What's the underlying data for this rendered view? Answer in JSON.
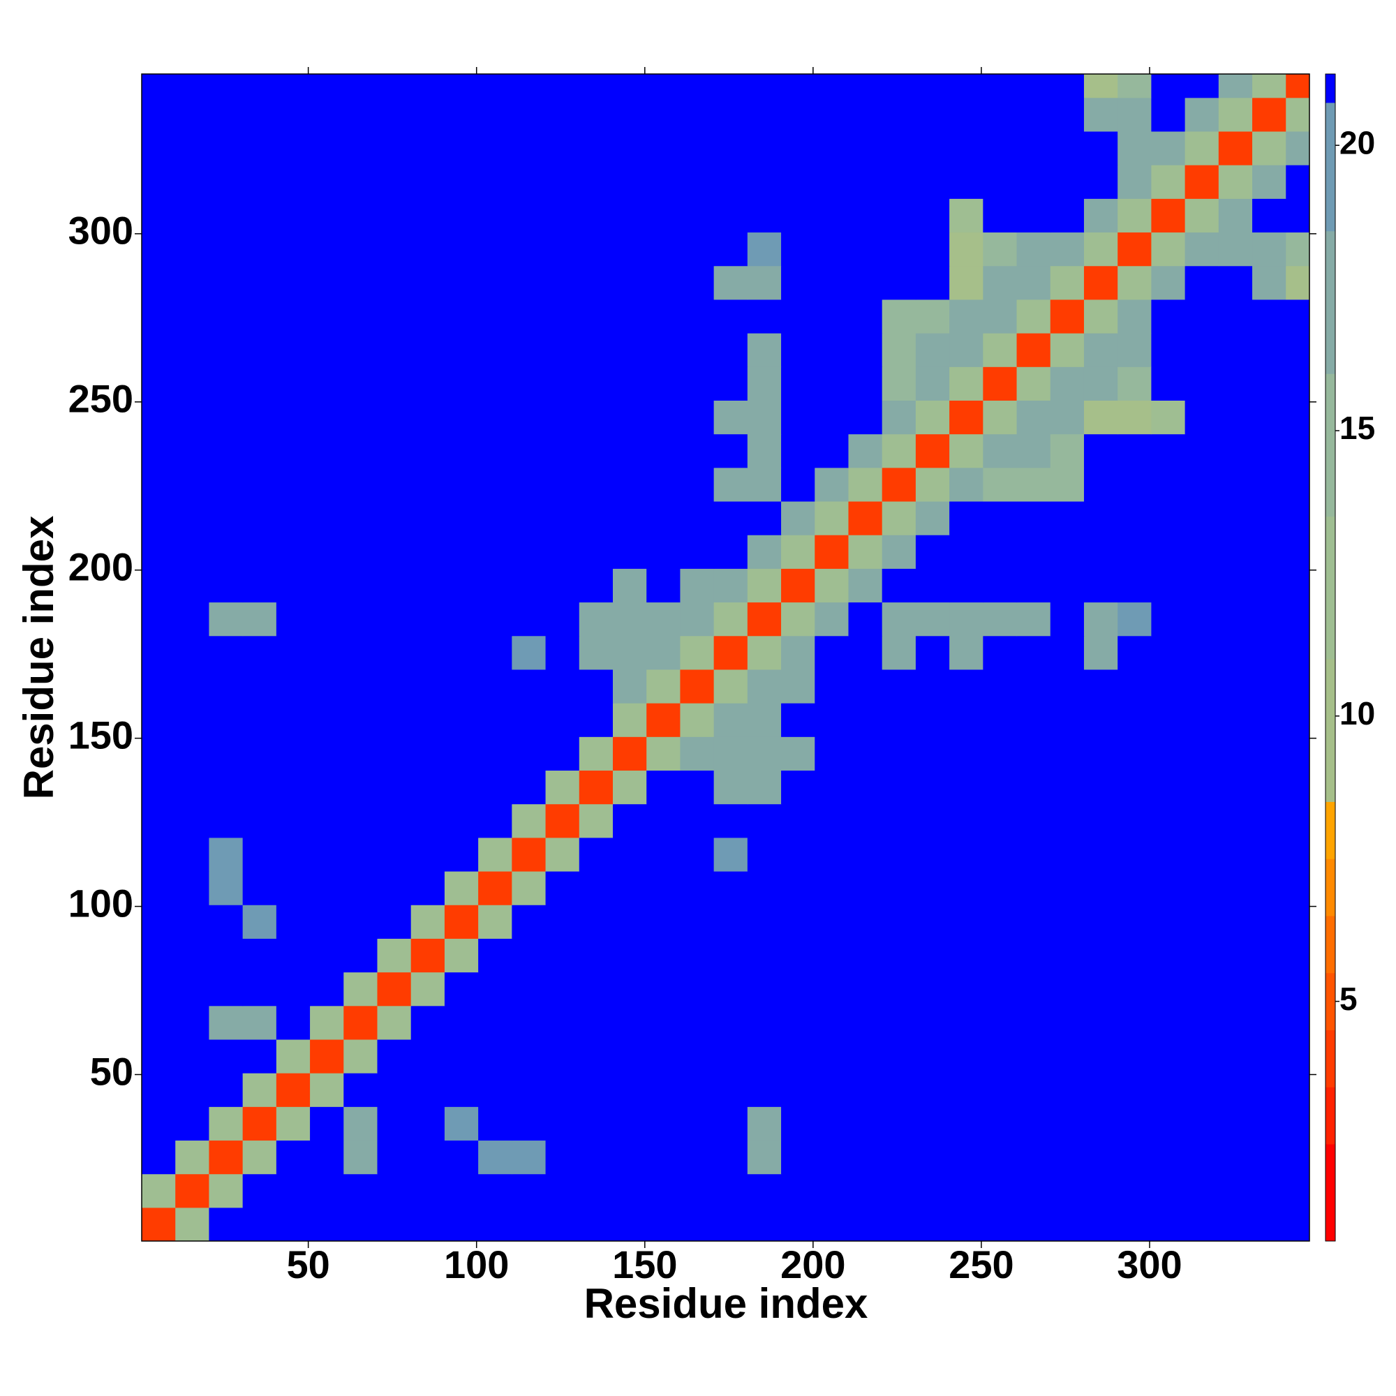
{
  "chart_data": {
    "type": "heatmap",
    "xlabel": "Residue index",
    "ylabel": "Residue index",
    "x": [
      5.5,
      15.5,
      25.5,
      35.5,
      45.5,
      55.5,
      65.5,
      75.5,
      85.5,
      95.5,
      105.5,
      115.5,
      125.5,
      135.5,
      145.5,
      155.5,
      165.5,
      175.5,
      185.5,
      195.5,
      205.5,
      215.5,
      225.5,
      235.5,
      245.5,
      255.5,
      265.5,
      275.5,
      285.5,
      295.5,
      305.5,
      315.5,
      325.5,
      335.5,
      345.5
    ],
    "y": [
      5.5,
      15.5,
      25.5,
      35.5,
      45.5,
      55.5,
      65.5,
      75.5,
      85.5,
      95.5,
      105.5,
      115.5,
      125.5,
      135.5,
      145.5,
      155.5,
      165.5,
      175.5,
      185.5,
      195.5,
      205.5,
      215.5,
      225.5,
      235.5,
      245.5,
      255.5,
      265.5,
      275.5,
      285.5,
      295.5,
      305.5,
      315.5,
      325.5,
      335.5,
      345.5
    ],
    "xlim": [
      0.5,
      347.5
    ],
    "ylim": [
      0.5,
      347.5
    ],
    "xticks": [
      50,
      100,
      150,
      200,
      250,
      300
    ],
    "yticks": [
      50,
      100,
      150,
      200,
      250,
      300
    ],
    "clim": [
      0.8,
      21.25
    ],
    "cticks": [
      5,
      10,
      15,
      20
    ],
    "colorscale": [
      {
        "value": 0.8,
        "color": "#ff0000"
      },
      {
        "value": 2.5,
        "color": "#ff2200"
      },
      {
        "value": 3.5,
        "color": "#ff3c00"
      },
      {
        "value": 4.5,
        "color": "#ff5500"
      },
      {
        "value": 5.5,
        "color": "#ff6e00"
      },
      {
        "value": 6.5,
        "color": "#ff8a00"
      },
      {
        "value": 7.5,
        "color": "#ffa400"
      },
      {
        "value": 8.5,
        "color": "#a6bf8a"
      },
      {
        "value": 11,
        "color": "#9fbe92"
      },
      {
        "value": 13.5,
        "color": "#96b89c"
      },
      {
        "value": 16,
        "color": "#86aba6"
      },
      {
        "value": 18.5,
        "color": "#6f9bb4"
      },
      {
        "value": 20.75,
        "color": "#0000ff"
      }
    ],
    "values": [
      [
        4,
        12,
        21,
        21,
        21,
        21,
        21,
        21,
        21,
        21,
        21,
        21,
        21,
        21,
        21,
        21,
        21,
        21,
        21,
        21,
        21,
        21,
        21,
        21,
        21,
        21,
        21,
        21,
        21,
        21,
        21,
        21,
        21,
        21,
        21
      ],
      [
        12,
        4,
        12,
        21,
        21,
        21,
        21,
        21,
        21,
        21,
        21,
        21,
        21,
        21,
        21,
        21,
        21,
        21,
        21,
        21,
        21,
        21,
        21,
        21,
        21,
        21,
        21,
        21,
        21,
        21,
        21,
        21,
        21,
        21,
        21
      ],
      [
        21,
        12,
        4,
        12,
        21,
        21,
        17,
        21,
        21,
        21,
        19,
        19,
        21,
        21,
        21,
        21,
        21,
        21,
        17,
        21,
        21,
        21,
        21,
        21,
        21,
        21,
        21,
        21,
        21,
        21,
        21,
        21,
        21,
        21,
        21
      ],
      [
        21,
        21,
        12,
        4,
        12,
        21,
        17,
        21,
        21,
        19,
        21,
        21,
        21,
        21,
        21,
        21,
        21,
        21,
        18,
        21,
        21,
        21,
        21,
        21,
        21,
        21,
        21,
        21,
        21,
        21,
        21,
        21,
        21,
        21,
        21
      ],
      [
        21,
        21,
        21,
        12,
        4,
        12,
        21,
        21,
        21,
        21,
        21,
        21,
        21,
        21,
        21,
        21,
        21,
        21,
        21,
        21,
        21,
        21,
        21,
        21,
        21,
        21,
        21,
        21,
        21,
        21,
        21,
        21,
        21,
        21,
        21
      ],
      [
        21,
        21,
        21,
        21,
        12,
        4,
        12,
        21,
        21,
        21,
        21,
        21,
        21,
        21,
        21,
        21,
        21,
        21,
        21,
        21,
        21,
        21,
        21,
        21,
        21,
        21,
        21,
        21,
        21,
        21,
        21,
        21,
        21,
        21,
        21
      ],
      [
        21,
        21,
        17,
        17,
        21,
        12,
        4,
        12,
        21,
        21,
        21,
        21,
        21,
        21,
        21,
        21,
        21,
        21,
        21,
        21,
        21,
        21,
        21,
        21,
        21,
        21,
        21,
        21,
        21,
        21,
        21,
        21,
        21,
        21,
        21
      ],
      [
        21,
        21,
        21,
        21,
        21,
        21,
        12,
        4,
        12,
        21,
        21,
        21,
        21,
        21,
        21,
        21,
        21,
        21,
        21,
        21,
        21,
        21,
        21,
        21,
        21,
        21,
        21,
        21,
        21,
        21,
        21,
        21,
        21,
        21,
        21
      ],
      [
        21,
        21,
        21,
        21,
        21,
        21,
        21,
        12,
        4,
        12,
        21,
        21,
        21,
        21,
        21,
        21,
        21,
        21,
        21,
        21,
        21,
        21,
        21,
        21,
        21,
        21,
        21,
        21,
        21,
        21,
        21,
        21,
        21,
        21,
        21
      ],
      [
        21,
        21,
        21,
        19,
        21,
        21,
        21,
        21,
        12,
        4,
        12,
        21,
        21,
        21,
        21,
        21,
        21,
        21,
        21,
        21,
        21,
        21,
        21,
        21,
        21,
        21,
        21,
        21,
        21,
        21,
        21,
        21,
        21,
        21,
        21
      ],
      [
        21,
        21,
        19,
        21,
        21,
        21,
        21,
        21,
        21,
        12,
        4,
        12,
        21,
        21,
        21,
        21,
        21,
        21,
        21,
        21,
        21,
        21,
        21,
        21,
        21,
        21,
        21,
        21,
        21,
        21,
        21,
        21,
        21,
        21,
        21
      ],
      [
        21,
        21,
        19,
        21,
        21,
        21,
        21,
        21,
        21,
        21,
        12,
        4,
        12,
        21,
        21,
        21,
        21,
        19,
        21,
        21,
        21,
        21,
        21,
        21,
        21,
        21,
        21,
        21,
        21,
        21,
        21,
        21,
        21,
        21,
        21
      ],
      [
        21,
        21,
        21,
        21,
        21,
        21,
        21,
        21,
        21,
        21,
        21,
        12,
        4,
        12,
        21,
        21,
        21,
        21,
        21,
        21,
        21,
        21,
        21,
        21,
        21,
        21,
        21,
        21,
        21,
        21,
        21,
        21,
        21,
        21,
        21
      ],
      [
        21,
        21,
        21,
        21,
        21,
        21,
        21,
        21,
        21,
        21,
        21,
        21,
        12,
        4,
        12,
        21,
        21,
        17,
        18,
        21,
        21,
        21,
        21,
        21,
        21,
        21,
        21,
        21,
        21,
        21,
        21,
        21,
        21,
        21,
        21
      ],
      [
        21,
        21,
        21,
        21,
        21,
        21,
        21,
        21,
        21,
        21,
        21,
        21,
        21,
        12,
        4,
        12,
        16,
        16,
        16,
        17,
        21,
        21,
        21,
        21,
        21,
        21,
        21,
        21,
        21,
        21,
        21,
        21,
        21,
        21,
        21
      ],
      [
        21,
        21,
        21,
        21,
        21,
        21,
        21,
        21,
        21,
        21,
        21,
        21,
        21,
        21,
        12,
        4,
        12,
        16,
        16,
        21,
        21,
        21,
        21,
        21,
        21,
        21,
        21,
        21,
        21,
        21,
        21,
        21,
        21,
        21,
        21
      ],
      [
        21,
        21,
        21,
        21,
        21,
        21,
        21,
        21,
        21,
        21,
        21,
        21,
        21,
        21,
        16,
        12,
        4,
        12,
        16,
        16,
        21,
        21,
        21,
        21,
        21,
        21,
        21,
        21,
        21,
        21,
        21,
        21,
        21,
        21,
        21
      ],
      [
        21,
        21,
        21,
        21,
        21,
        21,
        21,
        21,
        21,
        21,
        21,
        19,
        21,
        17,
        16,
        16,
        12,
        4,
        12,
        16,
        21,
        21,
        17,
        21,
        17,
        21,
        21,
        21,
        18,
        21,
        21,
        21,
        21,
        21,
        21
      ],
      [
        21,
        21,
        17,
        18,
        21,
        21,
        21,
        21,
        21,
        21,
        21,
        21,
        21,
        18,
        16,
        16,
        16,
        12,
        4,
        12,
        16,
        21,
        17,
        18,
        18,
        18,
        18,
        21,
        18,
        19,
        21,
        21,
        21,
        21,
        21
      ],
      [
        21,
        21,
        21,
        21,
        21,
        21,
        21,
        21,
        21,
        21,
        21,
        21,
        21,
        21,
        17,
        21,
        16,
        16,
        12,
        4,
        12,
        16,
        21,
        21,
        21,
        21,
        21,
        21,
        21,
        21,
        21,
        21,
        21,
        21,
        21
      ],
      [
        21,
        21,
        21,
        21,
        21,
        21,
        21,
        21,
        21,
        21,
        21,
        21,
        21,
        21,
        21,
        21,
        21,
        21,
        16,
        12,
        4,
        12,
        16,
        21,
        21,
        21,
        21,
        21,
        21,
        21,
        21,
        21,
        21,
        21,
        21
      ],
      [
        21,
        21,
        21,
        21,
        21,
        21,
        21,
        21,
        21,
        21,
        21,
        21,
        21,
        21,
        21,
        21,
        21,
        21,
        21,
        16,
        12,
        4,
        12,
        16,
        21,
        21,
        21,
        21,
        21,
        21,
        21,
        21,
        21,
        21,
        21
      ],
      [
        21,
        21,
        21,
        21,
        21,
        21,
        21,
        21,
        21,
        21,
        21,
        21,
        21,
        21,
        21,
        21,
        21,
        17,
        17,
        21,
        16,
        12,
        4,
        12,
        16,
        15,
        15,
        15,
        21,
        21,
        21,
        21,
        21,
        21,
        21
      ],
      [
        21,
        21,
        21,
        21,
        21,
        21,
        21,
        21,
        21,
        21,
        21,
        21,
        21,
        21,
        21,
        21,
        21,
        21,
        18,
        21,
        21,
        16,
        12,
        4,
        12,
        16,
        17,
        15,
        21,
        21,
        21,
        21,
        21,
        21,
        21
      ],
      [
        21,
        21,
        21,
        21,
        21,
        21,
        21,
        21,
        21,
        21,
        21,
        21,
        21,
        21,
        21,
        21,
        21,
        17,
        18,
        21,
        21,
        21,
        16,
        12,
        4,
        12,
        16,
        17,
        9,
        9,
        12,
        21,
        21,
        21,
        21
      ],
      [
        21,
        21,
        21,
        21,
        21,
        21,
        21,
        21,
        21,
        21,
        21,
        21,
        21,
        21,
        21,
        21,
        21,
        21,
        18,
        21,
        21,
        21,
        15,
        16,
        12,
        4,
        12,
        16,
        17,
        15,
        21,
        21,
        21,
        21,
        21
      ],
      [
        21,
        21,
        21,
        21,
        21,
        21,
        21,
        21,
        21,
        21,
        21,
        21,
        21,
        21,
        21,
        21,
        21,
        21,
        18,
        21,
        21,
        21,
        15,
        17,
        16,
        12,
        4,
        12,
        16,
        17,
        21,
        21,
        21,
        21,
        21
      ],
      [
        21,
        21,
        21,
        21,
        21,
        21,
        21,
        21,
        21,
        21,
        21,
        21,
        21,
        21,
        21,
        21,
        21,
        21,
        21,
        21,
        21,
        21,
        15,
        15,
        17,
        16,
        12,
        4,
        12,
        16,
        21,
        21,
        21,
        21,
        21
      ],
      [
        21,
        21,
        21,
        21,
        21,
        21,
        21,
        21,
        21,
        21,
        21,
        21,
        21,
        21,
        21,
        21,
        21,
        18,
        18,
        21,
        21,
        21,
        21,
        21,
        9,
        17,
        16,
        12,
        4,
        12,
        16,
        21,
        21,
        17,
        10
      ],
      [
        21,
        21,
        21,
        21,
        21,
        21,
        21,
        21,
        21,
        21,
        21,
        21,
        21,
        21,
        21,
        21,
        21,
        21,
        19,
        21,
        21,
        21,
        21,
        21,
        9,
        15,
        17,
        16,
        12,
        4,
        12,
        16,
        17,
        17,
        15
      ],
      [
        21,
        21,
        21,
        21,
        21,
        21,
        21,
        21,
        21,
        21,
        21,
        21,
        21,
        21,
        21,
        21,
        21,
        21,
        21,
        21,
        21,
        21,
        21,
        21,
        12,
        21,
        21,
        21,
        16,
        12,
        4,
        12,
        16,
        21,
        21
      ],
      [
        21,
        21,
        21,
        21,
        21,
        21,
        21,
        21,
        21,
        21,
        21,
        21,
        21,
        21,
        21,
        21,
        21,
        21,
        21,
        21,
        21,
        21,
        21,
        21,
        21,
        21,
        21,
        21,
        21,
        16,
        12,
        4,
        12,
        16,
        21
      ],
      [
        21,
        21,
        21,
        21,
        21,
        21,
        21,
        21,
        21,
        21,
        21,
        21,
        21,
        21,
        21,
        21,
        21,
        21,
        21,
        21,
        21,
        21,
        21,
        21,
        21,
        21,
        21,
        21,
        21,
        17,
        16,
        12,
        4,
        12,
        16
      ],
      [
        21,
        21,
        21,
        21,
        21,
        21,
        21,
        21,
        21,
        21,
        21,
        21,
        21,
        21,
        21,
        21,
        21,
        21,
        21,
        21,
        21,
        21,
        21,
        21,
        21,
        21,
        21,
        21,
        17,
        17,
        21,
        16,
        12,
        4,
        12
      ],
      [
        21,
        21,
        21,
        21,
        21,
        21,
        21,
        21,
        21,
        21,
        21,
        21,
        21,
        21,
        21,
        21,
        21,
        21,
        21,
        21,
        21,
        21,
        21,
        21,
        21,
        21,
        21,
        21,
        10,
        15,
        21,
        21,
        16,
        12,
        4
      ]
    ]
  }
}
